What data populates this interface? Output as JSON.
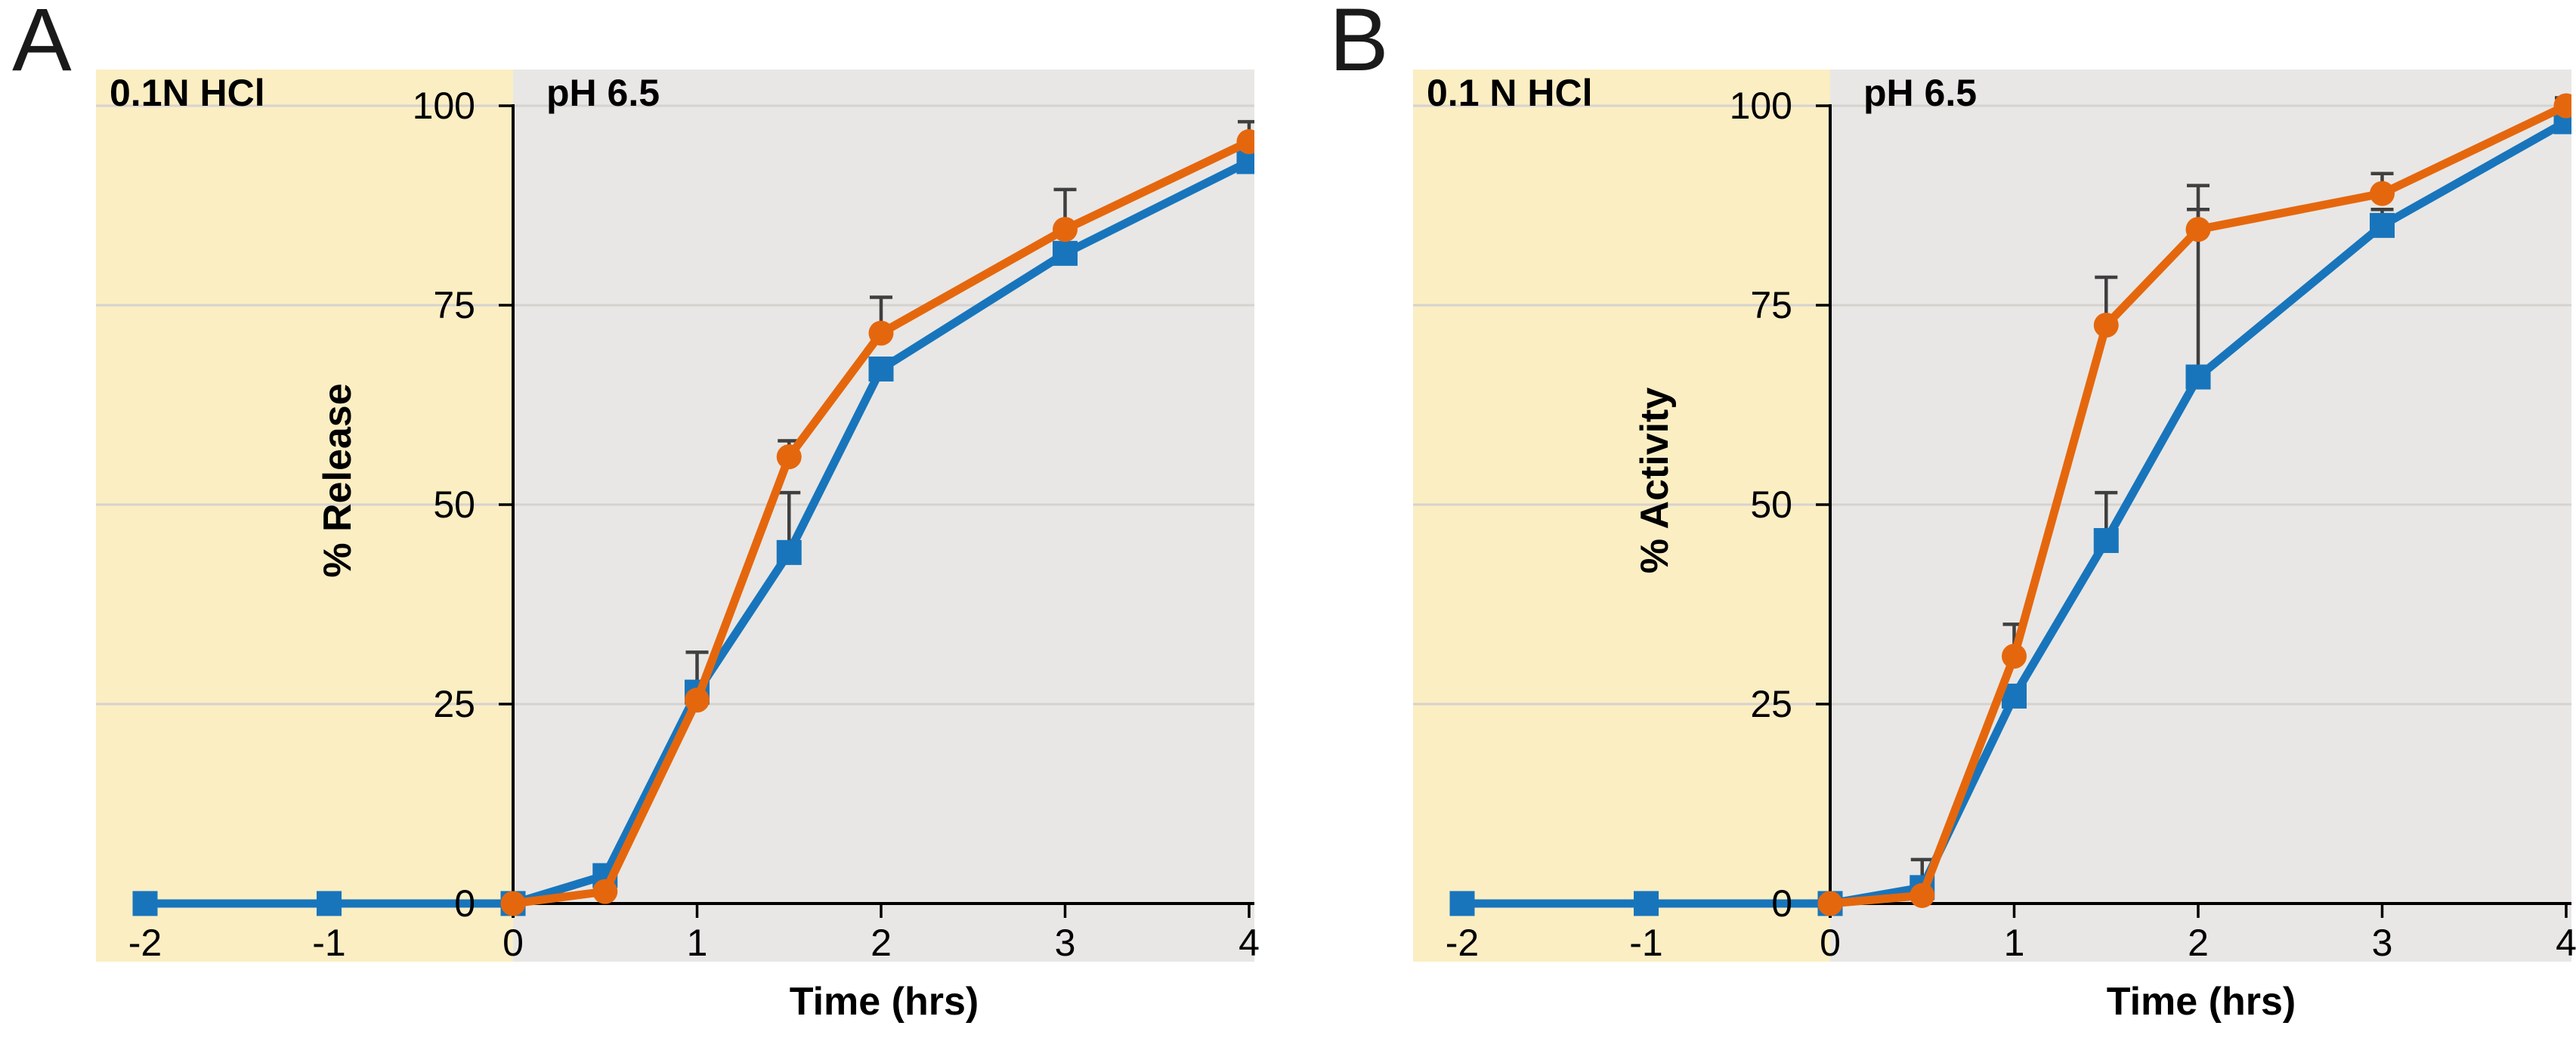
{
  "figure": {
    "description_colors": {
      "acid_region_fill": "#FCEEC3",
      "ph_region_fill": "#E8E7E5",
      "blue_series": "#1875BC",
      "orange_series": "#E5670D",
      "error_bar": "#3F3F3F",
      "gridline": "#D5D3CF",
      "axis": "#000000"
    }
  },
  "chart_data": [
    {
      "type": "line",
      "panel_label": "A",
      "title_left": "0.1N HCl",
      "title_right": "pH 6.5",
      "xlabel": "Time (hrs)",
      "ylabel": "% Release",
      "xlim": [
        -2.27,
        4.03
      ],
      "ylim": [
        0,
        100
      ],
      "x_ticks": [
        -2,
        -1,
        0,
        1,
        2,
        3,
        4
      ],
      "y_ticks": [
        0,
        25,
        50,
        75,
        100
      ],
      "grid": "horizontal",
      "legend": "none",
      "regions": [
        {
          "label": "0.1N HCl",
          "from_x": -2.27,
          "to_x": 0,
          "color": "#FCEEC3"
        },
        {
          "label": "pH 6.5",
          "from_x": 0,
          "to_x": 4.03,
          "color": "#E8E7E5"
        }
      ],
      "series": [
        {
          "name": "blue-squares",
          "marker": "square",
          "color": "#1875BC",
          "x": [
            -2,
            -1,
            0,
            0.5,
            1,
            1.5,
            2,
            3,
            4
          ],
          "y": [
            0,
            0,
            0,
            3.5,
            26.5,
            44,
            67,
            81.5,
            93
          ],
          "err_up": [
            0,
            0,
            0,
            0,
            5,
            7.5,
            0,
            0,
            0
          ]
        },
        {
          "name": "orange-circles",
          "marker": "circle",
          "color": "#E5670D",
          "x": [
            0,
            0.5,
            1,
            1.5,
            2,
            3,
            4
          ],
          "y": [
            0,
            1.5,
            25.5,
            56,
            71.5,
            84.5,
            95.5
          ],
          "err_up": [
            0,
            0,
            0,
            2,
            4.5,
            5,
            2.5
          ]
        }
      ]
    },
    {
      "type": "line",
      "panel_label": "B",
      "title_left": "0.1 N HCl",
      "title_right": "pH 6.5",
      "xlabel": "Time (hrs)",
      "ylabel": "% Activity",
      "xlim": [
        -2.27,
        4.03
      ],
      "ylim": [
        0,
        100
      ],
      "x_ticks": [
        -2,
        -1,
        0,
        1,
        2,
        3,
        4
      ],
      "y_ticks": [
        0,
        25,
        50,
        75,
        100
      ],
      "grid": "horizontal",
      "legend": "none",
      "regions": [
        {
          "label": "0.1 N HCl",
          "from_x": -2.27,
          "to_x": 0,
          "color": "#FCEEC3"
        },
        {
          "label": "pH 6.5",
          "from_x": 0,
          "to_x": 4.03,
          "color": "#E8E7E5"
        }
      ],
      "series": [
        {
          "name": "blue-squares",
          "marker": "square",
          "color": "#1875BC",
          "x": [
            -2,
            -1,
            0,
            0.5,
            1,
            1.5,
            2,
            3,
            4
          ],
          "y": [
            0,
            0,
            0,
            2,
            26,
            45.5,
            66,
            85,
            98
          ],
          "err_up": [
            0,
            0,
            0,
            3.5,
            0,
            6,
            21,
            2,
            0
          ]
        },
        {
          "name": "orange-circles",
          "marker": "circle",
          "color": "#E5670D",
          "x": [
            0,
            0.5,
            1,
            1.5,
            2,
            3,
            4
          ],
          "y": [
            0,
            1,
            31,
            72.5,
            84.5,
            89,
            100
          ],
          "err_up": [
            0,
            0,
            4,
            6,
            5.5,
            2.5,
            1
          ]
        }
      ]
    }
  ]
}
